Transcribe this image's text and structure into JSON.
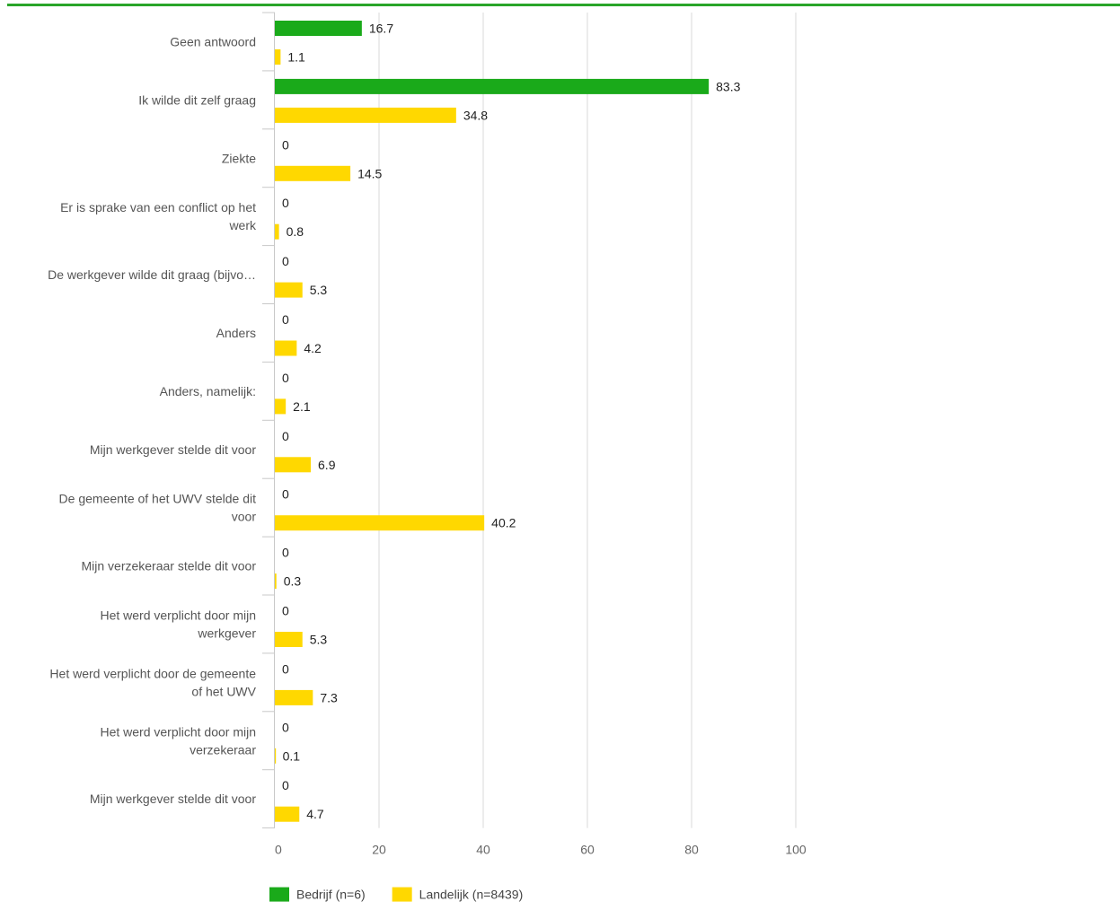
{
  "chart_data": {
    "type": "bar",
    "orientation": "horizontal",
    "categories": [
      [
        "Geen antwoord"
      ],
      [
        "Ik wilde dit zelf graag"
      ],
      [
        "Ziekte"
      ],
      [
        "Er is sprake van een conflict op het",
        "werk"
      ],
      [
        "De werkgever wilde dit graag (bijvo…"
      ],
      [
        "Anders"
      ],
      [
        "Anders, namelijk:"
      ],
      [
        "Mijn werkgever stelde dit voor"
      ],
      [
        "De gemeente of het UWV stelde dit",
        "voor"
      ],
      [
        "Mijn verzekeraar stelde dit voor"
      ],
      [
        "Het werd verplicht door mijn",
        "werkgever"
      ],
      [
        "Het werd verplicht door de gemeente",
        "of het UWV"
      ],
      [
        "Het werd verplicht door mijn",
        "verzekeraar"
      ],
      [
        "Mijn werkgever stelde dit voor"
      ]
    ],
    "series": [
      {
        "name": "Bedrijf (n=6)",
        "color": "#1aaa1a",
        "values": [
          16.7,
          83.3,
          0,
          0,
          0,
          0,
          0,
          0,
          0,
          0,
          0,
          0,
          0,
          0
        ]
      },
      {
        "name": "Landelijk (n=8439)",
        "color": "#ffd800",
        "values": [
          1.1,
          34.8,
          14.5,
          0.8,
          5.3,
          4.2,
          2.1,
          6.9,
          40.2,
          0.3,
          5.3,
          7.3,
          0.1,
          4.7
        ]
      }
    ],
    "xlim": [
      0,
      100
    ],
    "xticks": [
      0,
      20,
      40,
      60,
      80,
      100
    ],
    "grid": true,
    "legend_position": "bottom",
    "title": "",
    "xlabel": "",
    "ylabel": ""
  }
}
